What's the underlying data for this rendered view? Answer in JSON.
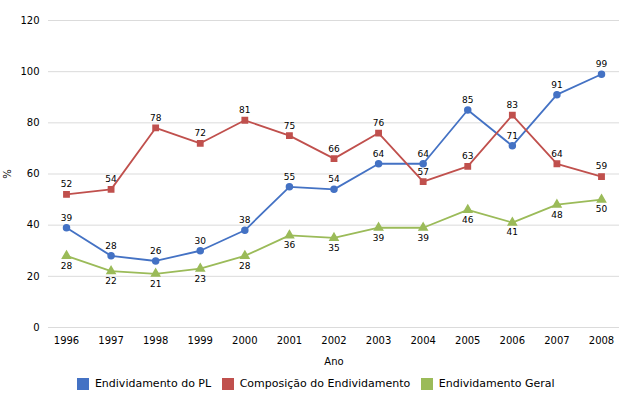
{
  "chart_data": {
    "type": "line",
    "x": [
      1996,
      1997,
      1998,
      1999,
      2000,
      2001,
      2002,
      2003,
      2004,
      2005,
      2006,
      2007,
      2008
    ],
    "series": [
      {
        "name": "Endividamento do PL",
        "color": "#4472C4",
        "marker": "circle",
        "values": [
          39,
          28,
          26,
          30,
          38,
          55,
          54,
          64,
          64,
          85,
          71,
          91,
          99
        ]
      },
      {
        "name": "Composição do Endividamento",
        "color": "#C0504D",
        "marker": "square",
        "values": [
          52,
          54,
          78,
          72,
          81,
          75,
          66,
          76,
          57,
          63,
          83,
          64,
          59
        ]
      },
      {
        "name": "Endividamento Geral",
        "color": "#9BBB59",
        "marker": "triangle",
        "values": [
          28,
          22,
          21,
          23,
          28,
          36,
          35,
          39,
          39,
          46,
          41,
          48,
          50
        ]
      }
    ],
    "xlabel": "Ano",
    "ylabel": "%",
    "xlim": [
      1996,
      2008
    ],
    "xticks": [
      1996,
      1997,
      1998,
      1999,
      2000,
      2001,
      2002,
      2003,
      2004,
      2005,
      2006,
      2007,
      2008
    ],
    "ylim": [
      0,
      120
    ],
    "yticks": [
      0,
      20,
      40,
      60,
      80,
      100,
      120
    ],
    "grid": true,
    "data_labels": true,
    "legend": "bottom"
  }
}
